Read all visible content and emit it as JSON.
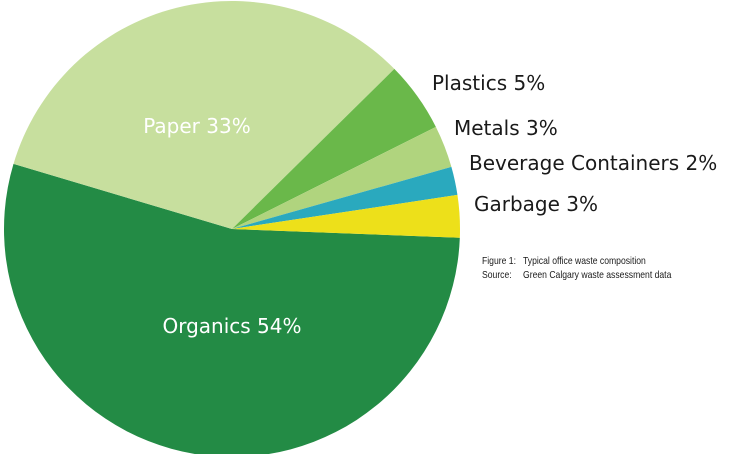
{
  "chart_data": {
    "type": "pie",
    "title": "",
    "slices": [
      {
        "label": "Organics",
        "value": 54,
        "display": "Organics 54%",
        "color": "#238b45",
        "label_position": "inside"
      },
      {
        "label": "Paper",
        "value": 33,
        "display": "Paper 33%",
        "color": "#c7df9e",
        "label_position": "inside"
      },
      {
        "label": "Plastics",
        "value": 5,
        "display": "Plastics 5%",
        "color": "#6ab84a",
        "label_position": "outside"
      },
      {
        "label": "Metals",
        "value": 3,
        "display": "Metals 3%",
        "color": "#b0d47e",
        "label_position": "outside"
      },
      {
        "label": "Beverage Containers",
        "value": 2,
        "display": "Beverage Containers 2%",
        "color": "#2aa9be",
        "label_position": "outside"
      },
      {
        "label": "Garbage",
        "value": 3,
        "display": "Garbage 3%",
        "color": "#ede01a",
        "label_position": "outside"
      }
    ],
    "legend": "none"
  },
  "caption": {
    "figure_key": "Figure 1:",
    "figure_text": "Typical office waste composition",
    "source_key": "Source:",
    "source_text": "Green Calgary waste assessment data"
  }
}
